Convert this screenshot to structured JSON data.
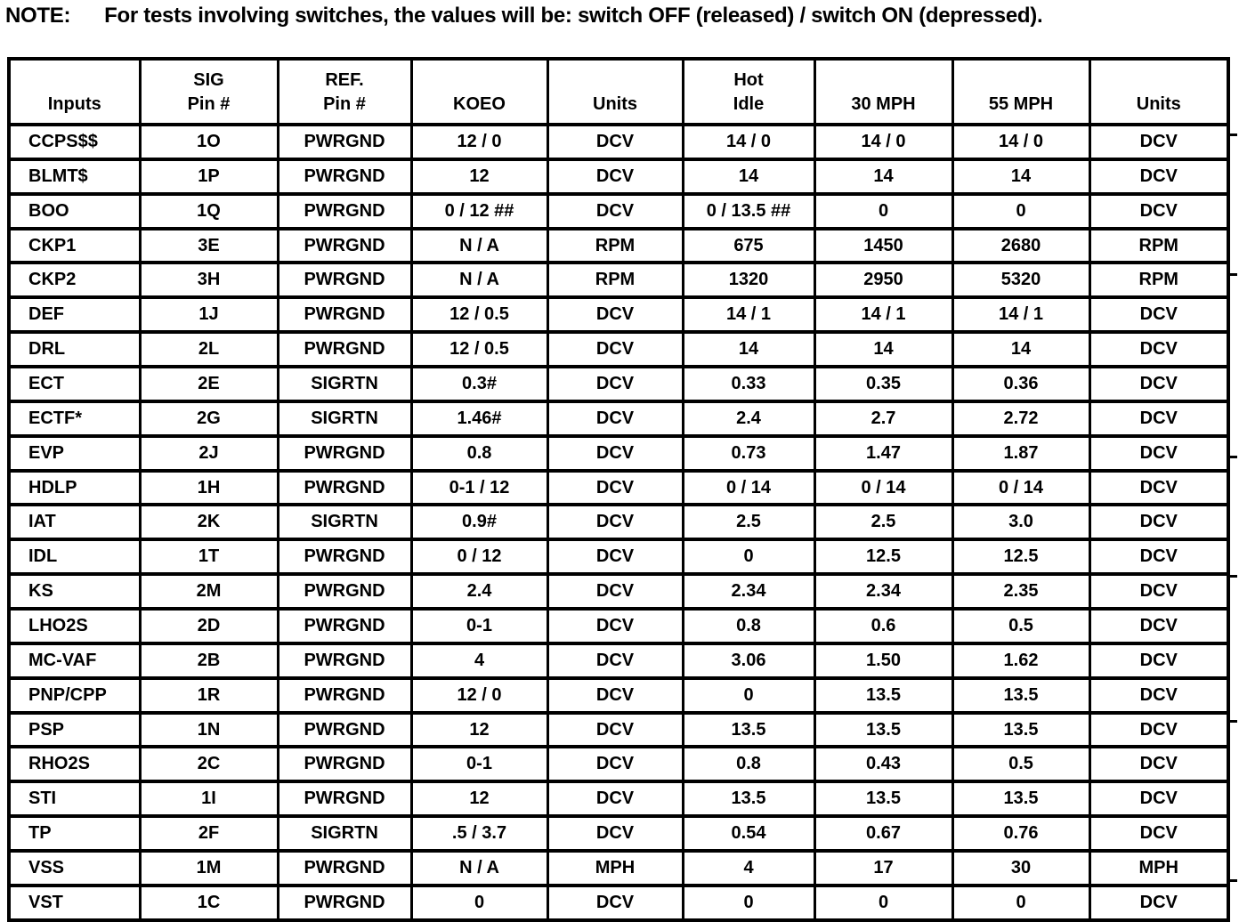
{
  "note": {
    "label": "NOTE:",
    "text": "For tests involving switches, the values will be: switch OFF (released) / switch ON (depressed)."
  },
  "table": {
    "headers": [
      "Inputs",
      "SIG\nPin #",
      "REF.\nPin #",
      "KOEO",
      "Units",
      "Hot\nIdle",
      "30 MPH",
      "55 MPH",
      "Units"
    ],
    "rows": [
      [
        "CCPS$$",
        "1O",
        "PWRGND",
        "12 / 0",
        "DCV",
        "14 / 0",
        "14 / 0",
        "14 / 0",
        "DCV"
      ],
      [
        "BLMT$",
        "1P",
        "PWRGND",
        "12",
        "DCV",
        "14",
        "14",
        "14",
        "DCV"
      ],
      [
        "BOO",
        "1Q",
        "PWRGND",
        "0 / 12 ##",
        "DCV",
        "0 / 13.5 ##",
        "0",
        "0",
        "DCV"
      ],
      [
        "CKP1",
        "3E",
        "PWRGND",
        "N / A",
        "RPM",
        "675",
        "1450",
        "2680",
        "RPM"
      ],
      [
        "CKP2",
        "3H",
        "PWRGND",
        "N / A",
        "RPM",
        "1320",
        "2950",
        "5320",
        "RPM"
      ],
      [
        "DEF",
        "1J",
        "PWRGND",
        "12 / 0.5",
        "DCV",
        "14 / 1",
        "14 / 1",
        "14 / 1",
        "DCV"
      ],
      [
        "DRL",
        "2L",
        "PWRGND",
        "12 / 0.5",
        "DCV",
        "14",
        "14",
        "14",
        "DCV"
      ],
      [
        "ECT",
        "2E",
        "SIGRTN",
        "0.3#",
        "DCV",
        "0.33",
        "0.35",
        "0.36",
        "DCV"
      ],
      [
        "ECTF*",
        "2G",
        "SIGRTN",
        "1.46#",
        "DCV",
        "2.4",
        "2.7",
        "2.72",
        "DCV"
      ],
      [
        "EVP",
        "2J",
        "PWRGND",
        "0.8",
        "DCV",
        "0.73",
        "1.47",
        "1.87",
        "DCV"
      ],
      [
        "HDLP",
        "1H",
        "PWRGND",
        "0-1 / 12",
        "DCV",
        "0 / 14",
        "0 / 14",
        "0 / 14",
        "DCV"
      ],
      [
        "IAT",
        "2K",
        "SIGRTN",
        "0.9#",
        "DCV",
        "2.5",
        "2.5",
        "3.0",
        "DCV"
      ],
      [
        "IDL",
        "1T",
        "PWRGND",
        "0 / 12",
        "DCV",
        "0",
        "12.5",
        "12.5",
        "DCV"
      ],
      [
        "KS",
        "2M",
        "PWRGND",
        "2.4",
        "DCV",
        "2.34",
        "2.34",
        "2.35",
        "DCV"
      ],
      [
        "LHO2S",
        "2D",
        "PWRGND",
        "0-1",
        "DCV",
        "0.8",
        "0.6",
        "0.5",
        "DCV"
      ],
      [
        "MC-VAF",
        "2B",
        "PWRGND",
        "4",
        "DCV",
        "3.06",
        "1.50",
        "1.62",
        "DCV"
      ],
      [
        "PNP/CPP",
        "1R",
        "PWRGND",
        "12 / 0",
        "DCV",
        "0",
        "13.5",
        "13.5",
        "DCV"
      ],
      [
        "PSP",
        "1N",
        "PWRGND",
        "12",
        "DCV",
        "13.5",
        "13.5",
        "13.5",
        "DCV"
      ],
      [
        "RHO2S",
        "2C",
        "PWRGND",
        "0-1",
        "DCV",
        "0.8",
        "0.43",
        "0.5",
        "DCV"
      ],
      [
        "STI",
        "1I",
        "PWRGND",
        "12",
        "DCV",
        "13.5",
        "13.5",
        "13.5",
        "DCV"
      ],
      [
        "TP",
        "2F",
        "SIGRTN",
        ".5 / 3.7",
        "DCV",
        "0.54",
        "0.67",
        "0.76",
        "DCV"
      ],
      [
        "VSS",
        "1M",
        "PWRGND",
        "N / A",
        "MPH",
        "4",
        "17",
        "30",
        "MPH"
      ],
      [
        "VST",
        "1C",
        "PWRGND",
        "0",
        "DCV",
        "0",
        "0",
        "0",
        "DCV"
      ]
    ]
  }
}
